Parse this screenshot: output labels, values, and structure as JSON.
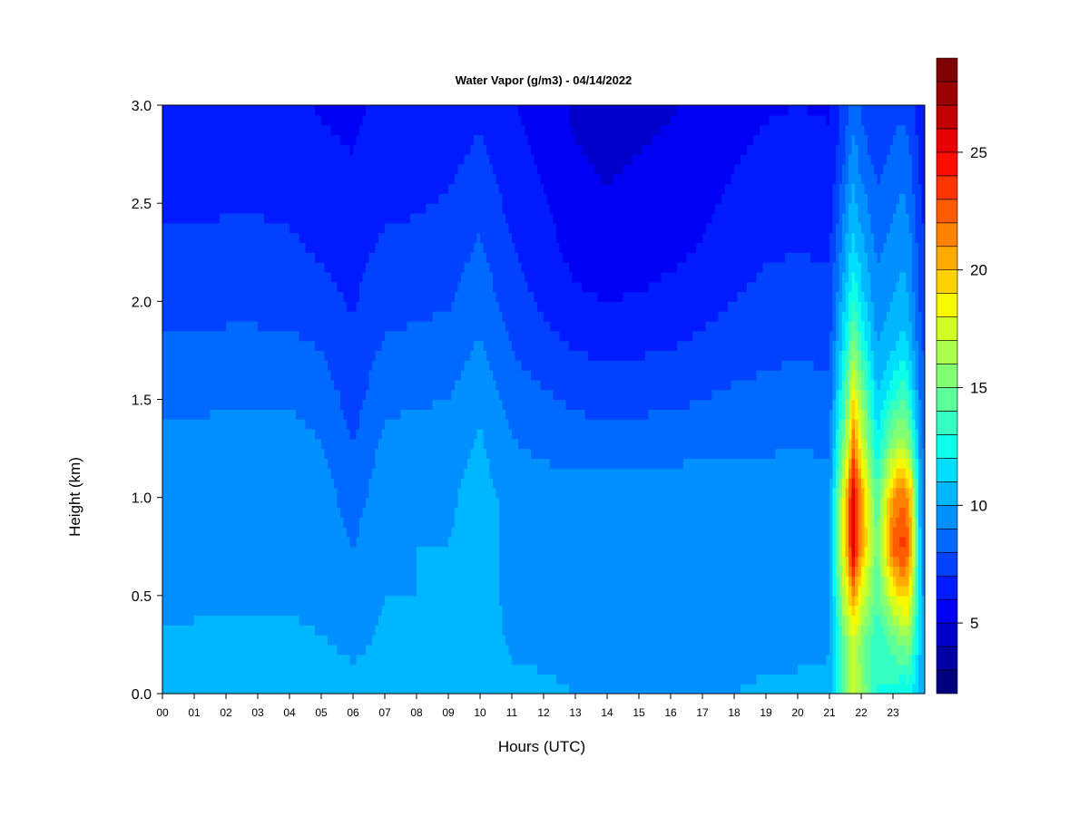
{
  "chart_data": {
    "type": "heatmap",
    "title": "Water Vapor (g/m3) - 04/14/2022",
    "xlabel": "Hours (UTC)",
    "ylabel": "Height (km)",
    "xlim": [
      0,
      24
    ],
    "ylim": [
      0,
      3
    ],
    "x_ticks": [
      "00",
      "01",
      "02",
      "03",
      "04",
      "05",
      "06",
      "07",
      "08",
      "09",
      "10",
      "11",
      "12",
      "13",
      "14",
      "15",
      "16",
      "17",
      "18",
      "19",
      "20",
      "21",
      "22",
      "23"
    ],
    "y_ticks": [
      "0.0",
      "0.5",
      "1.0",
      "1.5",
      "2.0",
      "2.5",
      "3.0"
    ],
    "colorbar": {
      "range": [
        2,
        27
      ],
      "step": 1,
      "ticks": [
        "5",
        "10",
        "15",
        "20",
        "25"
      ],
      "colors": [
        "#00007f",
        "#0000a6",
        "#0000cd",
        "#0000f4",
        "#001bff",
        "#0042ff",
        "#0069ff",
        "#0090ff",
        "#00b7ff",
        "#00deff",
        "#0effe8",
        "#35ffc1",
        "#5cff9a",
        "#83ff73",
        "#aaff4c",
        "#d1ff25",
        "#f8f800",
        "#ffd100",
        "#ffaa00",
        "#ff8300",
        "#ff5c00",
        "#ff3500",
        "#ff0e00",
        "#e80000",
        "#c10000",
        "#9a0000",
        "#7f0000"
      ]
    },
    "heights_km": [
      0.0,
      0.25,
      0.5,
      0.75,
      1.0,
      1.25,
      1.5,
      1.75,
      2.0,
      2.25,
      2.5,
      2.75,
      3.0
    ],
    "hours": [
      0,
      1,
      2,
      3,
      4,
      5,
      6,
      7,
      8,
      9,
      10,
      11,
      12,
      13,
      14,
      15,
      16,
      17,
      18,
      19,
      20,
      21,
      21.5,
      21.75,
      22,
      22.5,
      23,
      23.3,
      23.5,
      23.9
    ],
    "values_g_m3": [
      [
        10.5,
        10.5,
        10.5,
        10.5,
        10.5,
        10.5,
        10.4,
        10.5,
        10.5,
        10.6,
        10.8,
        10.5,
        10.4,
        10.0,
        9.8,
        9.9,
        10.0,
        9.9,
        10.0,
        10.3,
        10.4,
        10.5,
        15.0,
        17.5,
        16.0,
        13.0,
        12.5,
        12.0,
        12.0,
        10.5
      ],
      [
        10.1,
        10.2,
        10.2,
        10.2,
        10.2,
        10.1,
        9.8,
        10.2,
        10.2,
        10.3,
        10.8,
        9.8,
        9.5,
        9.3,
        9.3,
        9.4,
        9.5,
        9.4,
        9.4,
        9.5,
        9.6,
        9.8,
        15.0,
        17.0,
        15.5,
        13.0,
        14.5,
        15.0,
        15.5,
        10.5
      ],
      [
        9.8,
        9.8,
        9.8,
        9.9,
        9.9,
        9.7,
        9.2,
        10.0,
        10.0,
        10.1,
        10.6,
        9.6,
        9.5,
        9.4,
        9.4,
        9.4,
        9.5,
        9.5,
        9.4,
        9.5,
        9.6,
        9.6,
        17.5,
        21.0,
        18.0,
        14.0,
        18.0,
        19.5,
        19.0,
        10.0
      ],
      [
        9.8,
        9.8,
        9.8,
        9.9,
        9.9,
        9.7,
        9.0,
        9.9,
        10.0,
        10.0,
        10.6,
        9.6,
        9.7,
        9.6,
        9.6,
        9.6,
        9.7,
        9.7,
        9.6,
        9.7,
        9.7,
        9.5,
        19.5,
        25.5,
        21.0,
        14.5,
        22.5,
        23.5,
        22.5,
        9.5
      ],
      [
        9.6,
        9.6,
        9.7,
        9.7,
        9.7,
        9.5,
        8.5,
        9.7,
        9.8,
        9.8,
        10.5,
        9.6,
        9.6,
        9.5,
        9.5,
        9.5,
        9.6,
        9.6,
        9.5,
        9.6,
        9.6,
        9.4,
        19.0,
        26.0,
        21.0,
        14.0,
        21.0,
        22.0,
        21.0,
        9.3
      ],
      [
        9.3,
        9.3,
        9.4,
        9.4,
        9.4,
        9.1,
        8.0,
        9.3,
        9.4,
        9.5,
        10.2,
        9.1,
        8.8,
        8.6,
        8.6,
        8.6,
        8.7,
        8.8,
        8.8,
        8.9,
        9.0,
        8.9,
        16.0,
        22.0,
        18.0,
        12.0,
        16.0,
        17.0,
        16.0,
        9.0
      ],
      [
        8.8,
        8.8,
        8.9,
        8.9,
        8.9,
        8.6,
        7.6,
        8.8,
        8.9,
        9.0,
        9.8,
        8.6,
        8.2,
        7.8,
        7.6,
        7.7,
        7.8,
        8.0,
        8.2,
        8.3,
        8.4,
        8.3,
        14.0,
        19.0,
        16.0,
        11.0,
        13.0,
        14.0,
        13.0,
        8.5
      ],
      [
        8.2,
        8.2,
        8.3,
        8.3,
        8.3,
        8.0,
        7.2,
        8.2,
        8.3,
        8.4,
        9.2,
        8.0,
        7.4,
        7.0,
        6.8,
        6.9,
        7.0,
        7.3,
        7.6,
        7.8,
        7.9,
        7.8,
        12.5,
        15.5,
        13.5,
        10.0,
        11.0,
        11.5,
        11.0,
        8.0
      ],
      [
        7.6,
        7.6,
        7.7,
        7.7,
        7.6,
        7.3,
        6.9,
        7.6,
        7.8,
        7.9,
        8.6,
        7.5,
        6.8,
        6.2,
        6.0,
        6.1,
        6.3,
        6.6,
        7.0,
        7.3,
        7.4,
        7.3,
        11.0,
        13.0,
        11.5,
        9.3,
        10.0,
        10.5,
        10.0,
        7.6
      ],
      [
        7.2,
        7.2,
        7.3,
        7.3,
        7.2,
        6.9,
        6.7,
        7.2,
        7.3,
        7.5,
        8.2,
        7.1,
        6.4,
        5.7,
        5.4,
        5.6,
        5.8,
        6.1,
        6.6,
        6.9,
        7.0,
        6.9,
        10.0,
        11.5,
        10.5,
        8.8,
        9.5,
        9.8,
        9.5,
        7.2
      ],
      [
        6.8,
        6.8,
        6.9,
        6.9,
        6.8,
        6.5,
        6.3,
        6.8,
        6.9,
        7.1,
        7.7,
        6.7,
        6.1,
        5.4,
        5.1,
        5.3,
        5.5,
        5.8,
        6.2,
        6.5,
        6.6,
        6.5,
        9.0,
        10.5,
        9.5,
        8.2,
        8.8,
        9.2,
        8.8,
        6.9
      ],
      [
        6.5,
        6.5,
        6.6,
        6.6,
        6.5,
        6.2,
        6.0,
        6.5,
        6.6,
        6.7,
        7.2,
        6.4,
        5.8,
        5.1,
        4.8,
        5.0,
        5.2,
        5.5,
        5.9,
        6.2,
        6.3,
        6.2,
        8.0,
        9.5,
        8.5,
        7.6,
        8.2,
        8.5,
        8.2,
        6.6
      ],
      [
        6.2,
        6.2,
        6.2,
        6.3,
        6.2,
        5.9,
        5.8,
        6.2,
        6.3,
        6.4,
        6.8,
        6.1,
        5.5,
        4.8,
        4.6,
        4.7,
        4.9,
        5.2,
        5.6,
        5.9,
        6.0,
        5.9,
        7.5,
        8.5,
        7.8,
        7.0,
        7.5,
        7.8,
        7.5,
        6.3
      ]
    ]
  }
}
